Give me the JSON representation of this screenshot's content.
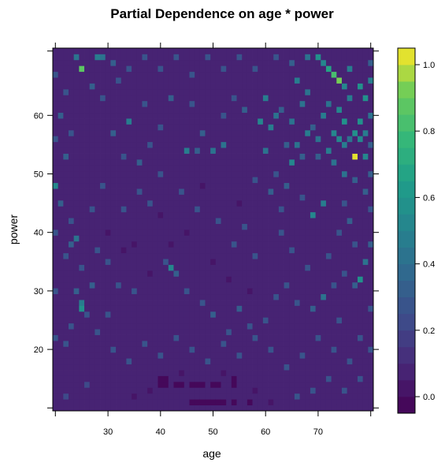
{
  "chart_data": {
    "type": "heatmap",
    "title": "Partial Dependence on age * power",
    "xlabel": "age",
    "ylabel": "power",
    "xlim": [
      19.5,
      80.5
    ],
    "ylim": [
      9.5,
      71.5
    ],
    "x_ticks": [
      30,
      40,
      50,
      60,
      70
    ],
    "y_ticks": [
      20,
      30,
      40,
      50,
      60
    ],
    "x_start": 20,
    "x_end": 80,
    "x_step": 1,
    "y_start": 10,
    "y_end": 71,
    "y_step": 1,
    "value_range": [
      -0.05,
      1.05
    ],
    "colorbar": {
      "ticks": [
        0.0,
        0.2,
        0.4,
        0.6,
        0.8,
        1.0
      ],
      "tick_labels": [
        "0.0",
        "0.2",
        "0.4",
        "0.6",
        "0.8",
        "1.0"
      ],
      "n_levels": 22,
      "colormap": "viridis"
    },
    "background_value": 0.07,
    "cells": [
      [
        77,
        53,
        1.0
      ],
      [
        74,
        66,
        0.92
      ],
      [
        73,
        67,
        0.8
      ],
      [
        25,
        68,
        0.85
      ],
      [
        72,
        68,
        0.7
      ],
      [
        78,
        65,
        0.6
      ],
      [
        79,
        63,
        0.55
      ],
      [
        78,
        59,
        0.58
      ],
      [
        77,
        57,
        0.55
      ],
      [
        79,
        53,
        0.5
      ],
      [
        24,
        70,
        0.4
      ],
      [
        28,
        70,
        0.45
      ],
      [
        29,
        70,
        0.4
      ],
      [
        31,
        69,
        0.35
      ],
      [
        70,
        70,
        0.55
      ],
      [
        71,
        69,
        0.5
      ],
      [
        76,
        68,
        0.45
      ],
      [
        75,
        65,
        0.5
      ],
      [
        76,
        63,
        0.45
      ],
      [
        74,
        61,
        0.5
      ],
      [
        75,
        59,
        0.55
      ],
      [
        73,
        57,
        0.5
      ],
      [
        74,
        56,
        0.5
      ],
      [
        75,
        55,
        0.45
      ],
      [
        76,
        56,
        0.4
      ],
      [
        78,
        56,
        0.5
      ],
      [
        79,
        57,
        0.45
      ],
      [
        80,
        60,
        0.4
      ],
      [
        80,
        55,
        0.35
      ],
      [
        66,
        66,
        0.45
      ],
      [
        68,
        64,
        0.4
      ],
      [
        60,
        63,
        0.45
      ],
      [
        59,
        59,
        0.5
      ],
      [
        61,
        58,
        0.45
      ],
      [
        62,
        60,
        0.4
      ],
      [
        60,
        54,
        0.4
      ],
      [
        63,
        61,
        0.35
      ],
      [
        65,
        59,
        0.4
      ],
      [
        67,
        62,
        0.4
      ],
      [
        69,
        58,
        0.35
      ],
      [
        70,
        56,
        0.4
      ],
      [
        71,
        60,
        0.45
      ],
      [
        72,
        62,
        0.4
      ],
      [
        64,
        55,
        0.35
      ],
      [
        65,
        52,
        0.5
      ],
      [
        66,
        55,
        0.4
      ],
      [
        67,
        53,
        0.35
      ],
      [
        68,
        57,
        0.45
      ],
      [
        70,
        53,
        0.35
      ],
      [
        72,
        54,
        0.45
      ],
      [
        73,
        52,
        0.4
      ],
      [
        75,
        50,
        0.4
      ],
      [
        77,
        49,
        0.35
      ],
      [
        79,
        47,
        0.35
      ],
      [
        75,
        45,
        0.3
      ],
      [
        71,
        45,
        0.45
      ],
      [
        69,
        43,
        0.5
      ],
      [
        67,
        46,
        0.3
      ],
      [
        64,
        48,
        0.35
      ],
      [
        62,
        50,
        0.3
      ],
      [
        61,
        47,
        0.35
      ],
      [
        58,
        49,
        0.3
      ],
      [
        63,
        44,
        0.3
      ],
      [
        34,
        59,
        0.45
      ],
      [
        31,
        57,
        0.35
      ],
      [
        33,
        53,
        0.3
      ],
      [
        36,
        52,
        0.35
      ],
      [
        38,
        55,
        0.3
      ],
      [
        45,
        54,
        0.45
      ],
      [
        47,
        54,
        0.35
      ],
      [
        50,
        54,
        0.4
      ],
      [
        52,
        55,
        0.4
      ],
      [
        48,
        57,
        0.35
      ],
      [
        40,
        58,
        0.3
      ],
      [
        37,
        62,
        0.3
      ],
      [
        42,
        63,
        0.35
      ],
      [
        46,
        62,
        0.3
      ],
      [
        54,
        63,
        0.3
      ],
      [
        56,
        61,
        0.35
      ],
      [
        52,
        60,
        0.3
      ],
      [
        27,
        65,
        0.35
      ],
      [
        29,
        63,
        0.3
      ],
      [
        32,
        66,
        0.3
      ],
      [
        22,
        64,
        0.3
      ],
      [
        21,
        60,
        0.35
      ],
      [
        23,
        57,
        0.3
      ],
      [
        22,
        53,
        0.35
      ],
      [
        20,
        48,
        0.5
      ],
      [
        21,
        45,
        0.35
      ],
      [
        23,
        42,
        0.3
      ],
      [
        24,
        39,
        0.4
      ],
      [
        23,
        38,
        0.35
      ],
      [
        22,
        36,
        0.3
      ],
      [
        25,
        34,
        0.3
      ],
      [
        24,
        30,
        0.35
      ],
      [
        25,
        28,
        0.45
      ],
      [
        25,
        27,
        0.55
      ],
      [
        26,
        26,
        0.3
      ],
      [
        23,
        24,
        0.3
      ],
      [
        22,
        21,
        0.3
      ],
      [
        28,
        23,
        0.3
      ],
      [
        30,
        26,
        0.3
      ],
      [
        32,
        31,
        0.3
      ],
      [
        35,
        30,
        0.3
      ],
      [
        33,
        44,
        0.3
      ],
      [
        36,
        47,
        0.3
      ],
      [
        41,
        35,
        0.3
      ],
      [
        42,
        34,
        0.5
      ],
      [
        43,
        33,
        0.35
      ],
      [
        45,
        30,
        0.3
      ],
      [
        48,
        28,
        0.3
      ],
      [
        50,
        26,
        0.35
      ],
      [
        53,
        23,
        0.3
      ],
      [
        57,
        24,
        0.3
      ],
      [
        55,
        27,
        0.35
      ],
      [
        60,
        25,
        0.3
      ],
      [
        62,
        29,
        0.3
      ],
      [
        64,
        31,
        0.3
      ],
      [
        66,
        28,
        0.3
      ],
      [
        69,
        27,
        0.35
      ],
      [
        71,
        29,
        0.4
      ],
      [
        73,
        31,
        0.3
      ],
      [
        75,
        33,
        0.3
      ],
      [
        77,
        31,
        0.35
      ],
      [
        78,
        32,
        0.55
      ],
      [
        79,
        35,
        0.4
      ],
      [
        80,
        38,
        0.35
      ],
      [
        77,
        38,
        0.3
      ],
      [
        74,
        40,
        0.3
      ],
      [
        76,
        42,
        0.35
      ],
      [
        72,
        36,
        0.3
      ],
      [
        68,
        34,
        0.3
      ],
      [
        65,
        37,
        0.3
      ],
      [
        63,
        40,
        0.3
      ],
      [
        58,
        36,
        0.3
      ],
      [
        56,
        41,
        0.3
      ],
      [
        54,
        38,
        0.3
      ],
      [
        51,
        42,
        0.3
      ],
      [
        47,
        44,
        0.3
      ],
      [
        44,
        47,
        0.3
      ],
      [
        40,
        50,
        0.3
      ],
      [
        38,
        45,
        0.3
      ],
      [
        29,
        48,
        0.3
      ],
      [
        27,
        44,
        0.3
      ],
      [
        28,
        37,
        0.3
      ],
      [
        30,
        35,
        0.3
      ],
      [
        27,
        31,
        0.35
      ],
      [
        31,
        20,
        0.3
      ],
      [
        34,
        18,
        0.3
      ],
      [
        37,
        21,
        0.3
      ],
      [
        40,
        19,
        0.3
      ],
      [
        43,
        22,
        0.3
      ],
      [
        46,
        20,
        0.3
      ],
      [
        49,
        18,
        0.3
      ],
      [
        52,
        21,
        0.3
      ],
      [
        55,
        19,
        0.3
      ],
      [
        58,
        22,
        0.3
      ],
      [
        61,
        20,
        0.3
      ],
      [
        64,
        17,
        0.3
      ],
      [
        67,
        19,
        0.3
      ],
      [
        70,
        22,
        0.3
      ],
      [
        73,
        20,
        0.3
      ],
      [
        76,
        18,
        0.3
      ],
      [
        78,
        22,
        0.3
      ],
      [
        74,
        25,
        0.3
      ],
      [
        66,
        12,
        0.3
      ],
      [
        69,
        13,
        0.3
      ],
      [
        72,
        15,
        0.3
      ],
      [
        75,
        13,
        0.3
      ],
      [
        78,
        15,
        0.3
      ],
      [
        80,
        20,
        0.3
      ],
      [
        80,
        27,
        0.3
      ],
      [
        80,
        44,
        0.3
      ],
      [
        80,
        50,
        0.35
      ],
      [
        80,
        66,
        0.45
      ],
      [
        80,
        69,
        0.35
      ],
      [
        68,
        70,
        0.4
      ],
      [
        65,
        69,
        0.35
      ],
      [
        62,
        70,
        0.3
      ],
      [
        58,
        68,
        0.3
      ],
      [
        55,
        70,
        0.3
      ],
      [
        52,
        68,
        0.3
      ],
      [
        49,
        70,
        0.3
      ],
      [
        46,
        67,
        0.3
      ],
      [
        43,
        70,
        0.3
      ],
      [
        40,
        68,
        0.3
      ],
      [
        37,
        70,
        0.3
      ],
      [
        34,
        68,
        0.3
      ],
      [
        20,
        67,
        0.3
      ],
      [
        20,
        56,
        0.3
      ],
      [
        20,
        40,
        0.3
      ],
      [
        20,
        30,
        0.3
      ],
      [
        20,
        22,
        0.3
      ],
      [
        22,
        12,
        0.2
      ],
      [
        26,
        14,
        0.2
      ],
      [
        40,
        15,
        -0.05
      ],
      [
        40,
        14,
        -0.05
      ],
      [
        41,
        15,
        -0.05
      ],
      [
        41,
        14,
        -0.05
      ],
      [
        43,
        14,
        -0.05
      ],
      [
        44,
        14,
        -0.05
      ],
      [
        46,
        14,
        -0.05
      ],
      [
        47,
        14,
        -0.05
      ],
      [
        48,
        14,
        -0.05
      ],
      [
        50,
        14,
        -0.05
      ],
      [
        51,
        14,
        -0.05
      ],
      [
        54,
        15,
        -0.05
      ],
      [
        54,
        14,
        -0.05
      ],
      [
        46,
        11,
        -0.05
      ],
      [
        47,
        11,
        -0.05
      ],
      [
        48,
        11,
        -0.05
      ],
      [
        49,
        11,
        -0.05
      ],
      [
        50,
        11,
        -0.05
      ],
      [
        51,
        11,
        -0.05
      ],
      [
        52,
        11,
        -0.05
      ],
      [
        54,
        11,
        -0.05
      ],
      [
        57,
        11,
        -0.05
      ],
      [
        35,
        12,
        0.0
      ],
      [
        38,
        13,
        0.0
      ],
      [
        44,
        16,
        0.0
      ],
      [
        52,
        16,
        0.0
      ],
      [
        58,
        13,
        0.0
      ],
      [
        61,
        11,
        0.0
      ],
      [
        30,
        40,
        0.0
      ],
      [
        35,
        38,
        0.0
      ],
      [
        45,
        40,
        0.0
      ],
      [
        50,
        35,
        0.0
      ],
      [
        55,
        45,
        0.0
      ],
      [
        40,
        43,
        0.0
      ],
      [
        48,
        48,
        0.0
      ],
      [
        42,
        38,
        0.0
      ],
      [
        38,
        33,
        0.0
      ],
      [
        53,
        32,
        0.0
      ],
      [
        57,
        30,
        0.0
      ],
      [
        33,
        37,
        0.0
      ]
    ]
  }
}
